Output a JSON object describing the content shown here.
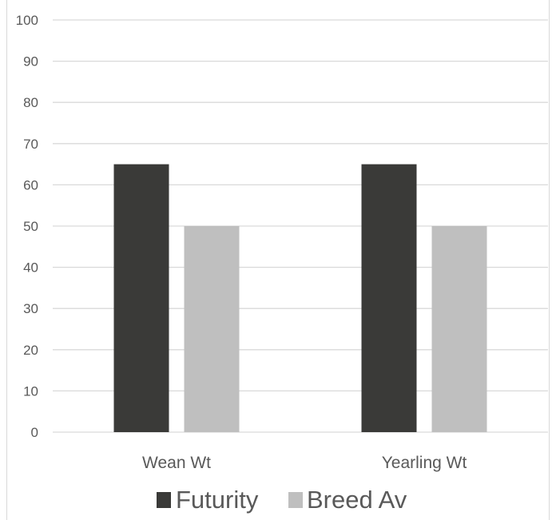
{
  "chart_data": {
    "type": "bar",
    "categories": [
      "Wean Wt",
      "Yearling Wt"
    ],
    "series": [
      {
        "name": "Futurity",
        "values": [
          65,
          65
        ],
        "color": "#3a3a38"
      },
      {
        "name": "Breed Av",
        "values": [
          50,
          50
        ],
        "color": "#bfbfbf"
      }
    ],
    "ylim": [
      0,
      100
    ],
    "yticks": [
      0,
      10,
      20,
      30,
      40,
      50,
      60,
      70,
      80,
      90,
      100
    ],
    "grid": true,
    "legend_position": "bottom",
    "title": "",
    "xlabel": "",
    "ylabel": ""
  }
}
